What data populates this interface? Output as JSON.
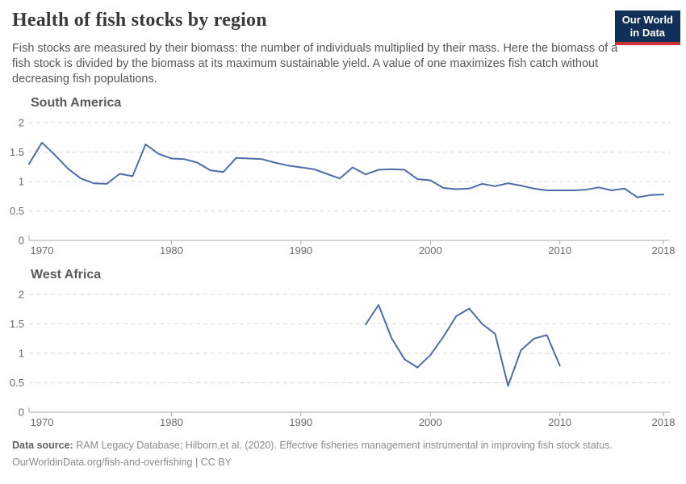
{
  "header": {
    "title": "Health of fish stocks by region",
    "subtitle": "Fish stocks are measured by their biomass: the number of individuals multiplied by their mass. Here the biomass of a fish stock is divided by the biomass at its maximum sustainable yield. A value of one maximizes fish catch without decreasing fish populations.",
    "logo": {
      "line1": "Our World",
      "line2": "in Data",
      "bg_color": "#103057",
      "accent_color": "#cf3235"
    }
  },
  "chart_data": [
    {
      "type": "line",
      "title": "South America",
      "xlabel": "",
      "ylabel": "",
      "xlim": [
        1969,
        2018.5
      ],
      "ylim": [
        0,
        2
      ],
      "x_ticks": [
        1970,
        1980,
        1990,
        2000,
        2010,
        2018
      ],
      "y_ticks": [
        0,
        0.5,
        1,
        1.5,
        2
      ],
      "grid": "horizontal-dashed",
      "legend": "none",
      "line_color": "#4d6daa",
      "x": [
        1969,
        1970,
        1971,
        1972,
        1973,
        1974,
        1975,
        1976,
        1977,
        1978,
        1979,
        1980,
        1981,
        1982,
        1983,
        1984,
        1985,
        1986,
        1987,
        1988,
        1989,
        1990,
        1991,
        1992,
        1993,
        1994,
        1995,
        1996,
        1997,
        1998,
        1999,
        2000,
        2001,
        2002,
        2003,
        2004,
        2005,
        2006,
        2007,
        2008,
        2009,
        2010,
        2011,
        2012,
        2013,
        2014,
        2015,
        2016,
        2017,
        2018
      ],
      "values": [
        1.3,
        1.66,
        1.45,
        1.22,
        1.05,
        0.97,
        0.96,
        1.13,
        1.09,
        1.63,
        1.47,
        1.39,
        1.38,
        1.32,
        1.19,
        1.16,
        1.4,
        1.39,
        1.38,
        1.32,
        1.27,
        1.24,
        1.21,
        1.13,
        1.05,
        1.24,
        1.12,
        1.2,
        1.21,
        1.2,
        1.04,
        1.02,
        0.89,
        0.87,
        0.88,
        0.96,
        0.92,
        0.97,
        0.93,
        0.88,
        0.85,
        0.85,
        0.85,
        0.86,
        0.9,
        0.85,
        0.88,
        0.73,
        0.77,
        0.78
      ]
    },
    {
      "type": "line",
      "title": "West Africa",
      "xlabel": "",
      "ylabel": "",
      "xlim": [
        1969,
        2018.5
      ],
      "ylim": [
        0,
        2
      ],
      "x_ticks": [
        1970,
        1980,
        1990,
        2000,
        2010,
        2018
      ],
      "y_ticks": [
        0,
        0.5,
        1,
        1.5,
        2
      ],
      "grid": "horizontal-dashed",
      "legend": "none",
      "line_color": "#4d6daa",
      "x": [
        1995,
        1996,
        1997,
        1998,
        1999,
        2000,
        2001,
        2002,
        2003,
        2004,
        2005,
        2006,
        2007,
        2008,
        2009,
        2010
      ],
      "values": [
        1.49,
        1.82,
        1.26,
        0.9,
        0.76,
        0.97,
        1.28,
        1.63,
        1.76,
        1.5,
        1.33,
        0.45,
        1.05,
        1.25,
        1.31,
        0.79
      ]
    }
  ],
  "footer": {
    "source_label": "Data source:",
    "source_text": " RAM Legacy Database; Hilborn,et al. (2020). Effective fisheries management instrumental in improving fish stock status.",
    "link_line": "OurWorldinData.org/fish-and-overfishing | CC BY"
  },
  "colors": {
    "axis": "#a8a8a8",
    "grid": "#dadada",
    "tick_label": "#6b6b6b",
    "line": "#4d6daa",
    "title": "#3a3a3a",
    "subtitle": "#565656",
    "panel_title": "#5a5a5a",
    "footer": "#8a8a8a"
  }
}
